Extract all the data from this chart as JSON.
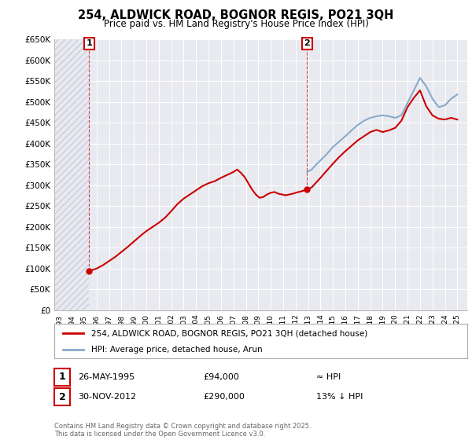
{
  "title": "254, ALDWICK ROAD, BOGNOR REGIS, PO21 3QH",
  "subtitle": "Price paid vs. HM Land Registry's House Price Index (HPI)",
  "legend_line1": "254, ALDWICK ROAD, BOGNOR REGIS, PO21 3QH (detached house)",
  "legend_line2": "HPI: Average price, detached house, Arun",
  "note1_label": "1",
  "note1_date": "26-MAY-1995",
  "note1_price": "£94,000",
  "note1_hpi": "≈ HPI",
  "note2_label": "2",
  "note2_date": "30-NOV-2012",
  "note2_price": "£290,000",
  "note2_hpi": "13% ↓ HPI",
  "copyright": "Contains HM Land Registry data © Crown copyright and database right 2025.\nThis data is licensed under the Open Government Licence v3.0.",
  "ylim": [
    0,
    650000
  ],
  "yticks": [
    0,
    50000,
    100000,
    150000,
    200000,
    250000,
    300000,
    350000,
    400000,
    450000,
    500000,
    550000,
    600000,
    650000
  ],
  "ytick_labels": [
    "£0",
    "£50K",
    "£100K",
    "£150K",
    "£200K",
    "£250K",
    "£300K",
    "£350K",
    "£400K",
    "£450K",
    "£500K",
    "£550K",
    "£600K",
    "£650K"
  ],
  "xlim_start": 1992.6,
  "xlim_end": 2025.8,
  "line_color_red": "#cc0000",
  "line_color_blue": "#88aacc",
  "bg_color": "#e8eaf0",
  "grid_color": "#ffffff",
  "point1_x": 1995.41,
  "point1_y": 94000,
  "point2_x": 2012.92,
  "point2_y": 290000,
  "red_line_x": [
    1995.41,
    1996.0,
    1996.5,
    1997.0,
    1997.5,
    1998.0,
    1998.5,
    1999.0,
    1999.5,
    2000.0,
    2000.5,
    2001.0,
    2001.5,
    2002.0,
    2002.5,
    2003.0,
    2003.5,
    2004.0,
    2004.5,
    2005.0,
    2005.5,
    2006.0,
    2006.5,
    2007.0,
    2007.3,
    2007.6,
    2007.9,
    2008.2,
    2008.5,
    2008.8,
    2009.1,
    2009.4,
    2009.7,
    2010.0,
    2010.3,
    2010.6,
    2010.9,
    2011.2,
    2011.5,
    2011.8,
    2012.1,
    2012.4,
    2012.92,
    2013.3,
    2013.6,
    2014.0,
    2014.5,
    2015.0,
    2015.5,
    2016.0,
    2016.5,
    2017.0,
    2017.5,
    2018.0,
    2018.5,
    2019.0,
    2019.5,
    2020.0,
    2020.5,
    2021.0,
    2021.5,
    2022.0,
    2022.5,
    2023.0,
    2023.5,
    2024.0,
    2024.5,
    2025.0
  ],
  "red_line_y": [
    94000,
    100000,
    108000,
    118000,
    128000,
    140000,
    152000,
    165000,
    178000,
    190000,
    200000,
    210000,
    222000,
    238000,
    255000,
    268000,
    278000,
    288000,
    298000,
    305000,
    310000,
    318000,
    325000,
    332000,
    338000,
    330000,
    320000,
    305000,
    290000,
    278000,
    270000,
    272000,
    278000,
    282000,
    284000,
    280000,
    278000,
    276000,
    278000,
    280000,
    283000,
    285000,
    290000,
    295000,
    305000,
    318000,
    335000,
    352000,
    368000,
    382000,
    395000,
    408000,
    418000,
    428000,
    433000,
    428000,
    432000,
    438000,
    455000,
    488000,
    510000,
    528000,
    490000,
    468000,
    460000,
    458000,
    462000,
    458000
  ],
  "blue_line_x": [
    2012.92,
    2013.3,
    2013.6,
    2014.0,
    2014.5,
    2015.0,
    2015.5,
    2016.0,
    2016.5,
    2017.0,
    2017.5,
    2018.0,
    2018.5,
    2019.0,
    2019.5,
    2020.0,
    2020.5,
    2021.0,
    2021.5,
    2022.0,
    2022.5,
    2023.0,
    2023.5,
    2024.0,
    2024.5,
    2025.0
  ],
  "blue_line_y": [
    332000,
    338000,
    348000,
    360000,
    375000,
    392000,
    405000,
    418000,
    432000,
    445000,
    455000,
    462000,
    466000,
    468000,
    466000,
    462000,
    468000,
    498000,
    528000,
    558000,
    538000,
    508000,
    488000,
    492000,
    508000,
    518000
  ]
}
